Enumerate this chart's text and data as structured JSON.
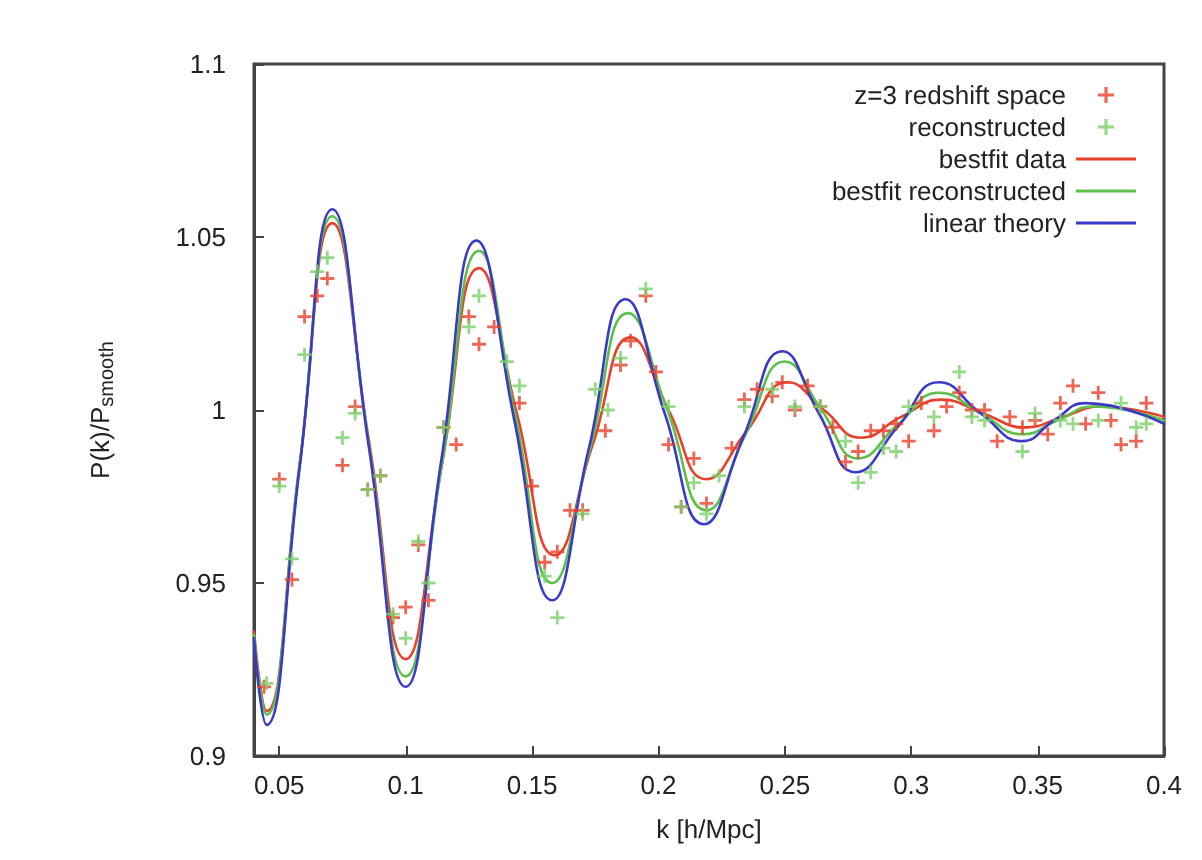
{
  "chart_data": {
    "type": "scatter",
    "xlabel": "k [h/Mpc]",
    "ylabel": "P(k)/P$_{smooth}$",
    "xlim": [
      0.04,
      0.4
    ],
    "xticks": [
      0.05,
      0.1,
      0.15,
      0.2,
      0.25,
      0.3,
      0.35,
      0.4
    ],
    "ylim": [
      0.9,
      1.1
    ],
    "yticks": [
      0.9,
      0.95,
      1,
      1.05,
      1.1
    ],
    "grid": false,
    "legend": "top right",
    "series": [
      {
        "name": "z=3 redshift space",
        "type": "scatter",
        "marker": "cross",
        "color": "#e8402a",
        "x": [
          0.044,
          0.05,
          0.055,
          0.06,
          0.065,
          0.069,
          0.075,
          0.08,
          0.085,
          0.09,
          0.095,
          0.1,
          0.105,
          0.109,
          0.115,
          0.12,
          0.125,
          0.129,
          0.135,
          0.145,
          0.15,
          0.155,
          0.16,
          0.165,
          0.17,
          0.179,
          0.185,
          0.189,
          0.195,
          0.199,
          0.204,
          0.209,
          0.214,
          0.219,
          0.229,
          0.234,
          0.239,
          0.245,
          0.249,
          0.254,
          0.259,
          0.264,
          0.269,
          0.274,
          0.279,
          0.284,
          0.289,
          0.294,
          0.299,
          0.304,
          0.309,
          0.314,
          0.319,
          0.324,
          0.329,
          0.334,
          0.339,
          0.344,
          0.349,
          0.354,
          0.359,
          0.364,
          0.369,
          0.374,
          0.379,
          0.383,
          0.389,
          0.393
        ],
        "values": [
          0.92,
          0.98,
          0.951,
          1.027,
          1.033,
          1.038,
          0.984,
          1.001,
          0.977,
          0.981,
          0.94,
          0.943,
          0.961,
          0.945,
          0.995,
          0.99,
          1.027,
          1.019,
          1.024,
          1.002,
          0.978,
          0.956,
          0.959,
          0.971,
          0.971,
          0.994,
          1.013,
          1.02,
          1.033,
          1.011,
          0.99,
          0.972,
          0.986,
          0.973,
          0.989,
          1.003,
          1.006,
          1.004,
          1.008,
          1.0,
          1.007,
          1.001,
          0.995,
          0.985,
          0.988,
          0.994,
          0.994,
          0.996,
          0.991,
          1.002,
          0.994,
          1.001,
          1.005,
          1.0,
          1.0,
          0.991,
          0.998,
          0.995,
          0.997,
          0.993,
          1.002,
          1.007,
          0.996,
          1.005,
          0.997,
          0.99,
          0.991,
          1.002
        ]
      },
      {
        "name": "reconstructed",
        "type": "scatter",
        "marker": "cross",
        "color": "#7ccf6a",
        "x": [
          0.045,
          0.05,
          0.055,
          0.06,
          0.065,
          0.069,
          0.075,
          0.08,
          0.085,
          0.09,
          0.095,
          0.1,
          0.105,
          0.109,
          0.115,
          0.125,
          0.129,
          0.14,
          0.145,
          0.155,
          0.16,
          0.17,
          0.175,
          0.18,
          0.185,
          0.195,
          0.204,
          0.209,
          0.214,
          0.219,
          0.224,
          0.234,
          0.245,
          0.254,
          0.264,
          0.274,
          0.279,
          0.284,
          0.289,
          0.294,
          0.299,
          0.309,
          0.319,
          0.324,
          0.329,
          0.344,
          0.349,
          0.359,
          0.364,
          0.374,
          0.383,
          0.389,
          0.393
        ],
        "values": [
          0.921,
          0.978,
          0.957,
          1.016,
          1.04,
          1.044,
          0.992,
          0.999,
          0.977,
          0.981,
          0.941,
          0.934,
          0.962,
          0.95,
          0.995,
          1.024,
          1.033,
          1.014,
          1.007,
          0.952,
          0.94,
          0.97,
          1.006,
          1.0,
          1.015,
          1.035,
          1.001,
          0.972,
          0.979,
          0.97,
          0.981,
          1.001,
          1.006,
          1.001,
          1.001,
          0.991,
          0.979,
          0.982,
          0.989,
          0.988,
          1.001,
          0.998,
          1.011,
          0.998,
          0.997,
          0.988,
          0.999,
          0.997,
          0.996,
          0.997,
          1.002,
          0.995,
          0.996
        ]
      },
      {
        "name": "bestfit data",
        "type": "line",
        "marker": "none",
        "color": "#e8402a",
        "x": [
          0.04,
          0.045,
          0.058,
          0.071,
          0.0855,
          0.1,
          0.1145,
          0.129,
          0.144,
          0.159,
          0.174,
          0.189,
          0.204,
          0.219,
          0.235,
          0.251,
          0.2655,
          0.28,
          0.296,
          0.312,
          0.3285,
          0.345,
          0.36,
          0.375,
          0.4
        ],
        "values": [
          0.936,
          0.913,
          0.984,
          1.054,
          0.991,
          0.928,
          0.985,
          1.041,
          0.999,
          0.958,
          0.99,
          1.021,
          1.0,
          0.98,
          0.994,
          1.008,
          1.0,
          0.992,
          0.998,
          1.003,
          0.999,
          0.995,
          0.998,
          1.001,
          0.998
        ]
      },
      {
        "name": "bestfit reconstructed",
        "type": "line",
        "marker": "none",
        "color": "#5cc04a",
        "x": [
          0.04,
          0.045,
          0.058,
          0.071,
          0.0855,
          0.1,
          0.1145,
          0.129,
          0.1435,
          0.158,
          0.173,
          0.188,
          0.2035,
          0.219,
          0.2345,
          0.25,
          0.2645,
          0.279,
          0.295,
          0.311,
          0.3275,
          0.344,
          0.358,
          0.372,
          0.4
        ],
        "values": [
          0.935,
          0.912,
          0.984,
          1.056,
          0.99,
          0.923,
          0.985,
          1.046,
          0.998,
          0.95,
          0.989,
          1.028,
          1.0,
          0.971,
          0.993,
          1.014,
          1.0,
          0.986,
          0.996,
          1.005,
          0.999,
          0.993,
          0.997,
          1.001,
          0.997
        ]
      },
      {
        "name": "linear theory",
        "type": "line",
        "marker": "none",
        "color": "#3a3ac8",
        "x": [
          0.04,
          0.045,
          0.058,
          0.071,
          0.0855,
          0.1,
          0.114,
          0.128,
          0.143,
          0.158,
          0.1725,
          0.187,
          0.2025,
          0.218,
          0.2335,
          0.249,
          0.2635,
          0.278,
          0.2945,
          0.311,
          0.3275,
          0.344,
          0.3565,
          0.369,
          0.4
        ],
        "values": [
          0.934,
          0.909,
          0.983,
          1.058,
          0.989,
          0.92,
          0.985,
          1.049,
          0.997,
          0.945,
          0.989,
          1.032,
          0.999,
          0.967,
          0.992,
          1.017,
          0.999,
          0.982,
          0.995,
          1.008,
          0.999,
          0.991,
          0.997,
          1.002,
          0.996
        ]
      }
    ]
  }
}
